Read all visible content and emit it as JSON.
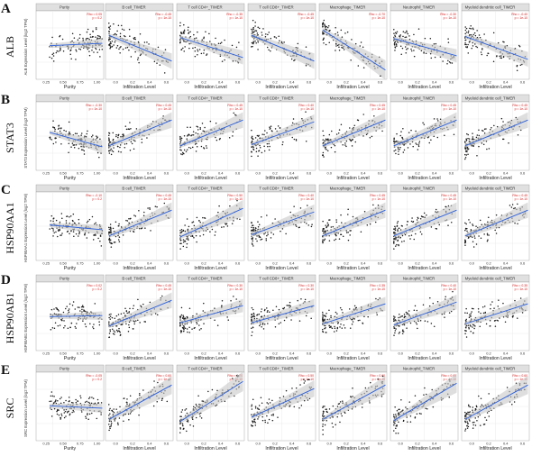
{
  "figure": {
    "x_axis_label": "Infiltration Level",
    "purity_x_label": "Purity",
    "columns": [
      "Purity",
      "B cell_TIMER",
      "T cell CD4+_TIMER",
      "T cell CD8+_TIMER",
      "Macrophage_TIMER",
      "Neutrophil_TIMER",
      "Myeloid dendritic cell_TIMER"
    ],
    "rows": [
      {
        "letter": "A",
        "gene": "ALB",
        "ylabel": "ALB Expression Level (log2 TPM)",
        "trends": [
          0.05,
          -0.45,
          -0.35,
          -0.45,
          -0.7,
          -0.3,
          -0.4
        ]
      },
      {
        "letter": "B",
        "gene": "STAT3",
        "ylabel": "STAT3 Expression Level (log2 TPM)",
        "trends": [
          -0.3,
          0.45,
          0.45,
          0.4,
          0.45,
          0.45,
          0.45
        ]
      },
      {
        "letter": "C",
        "gene": "HSP90AA1",
        "ylabel": "HSP90AA1 Expression Level (log2 TPM)",
        "trends": [
          -0.1,
          0.45,
          0.5,
          0.4,
          0.45,
          0.45,
          0.45
        ]
      },
      {
        "letter": "D",
        "gene": "HSP90AB1",
        "ylabel": "HSP90AB1 Expression Level (log2 TPM)",
        "trends": [
          0.02,
          0.45,
          0.3,
          0.3,
          0.35,
          0.4,
          0.35
        ]
      },
      {
        "letter": "E",
        "gene": "SRC",
        "ylabel": "SRC Expression Level (log2 TPM)",
        "trends": [
          -0.05,
          0.6,
          0.7,
          0.5,
          0.6,
          0.65,
          0.6
        ]
      }
    ]
  },
  "colors": {
    "points": "#1a1a1a",
    "line": "#2b5fd9",
    "band": "#c8c8c8",
    "stat": "#d62020",
    "header": "#e0e0e0"
  },
  "chart_data": {
    "type": "scatter",
    "title": "",
    "xlabel": "Infiltration Level",
    "ylabel": "Expression Level (log2 TPM)",
    "grid": true,
    "panels_rows": [
      "ALB",
      "STAT3",
      "HSP90AA1",
      "HSP90AB1",
      "SRC"
    ],
    "panels_columns": [
      "Purity",
      "B cell_TIMER",
      "T cell CD4+_TIMER",
      "T cell CD8+_TIMER",
      "Macrophage_TIMER",
      "Neutrophil_TIMER",
      "Myeloid dendritic cell_TIMER"
    ],
    "series": []
  }
}
